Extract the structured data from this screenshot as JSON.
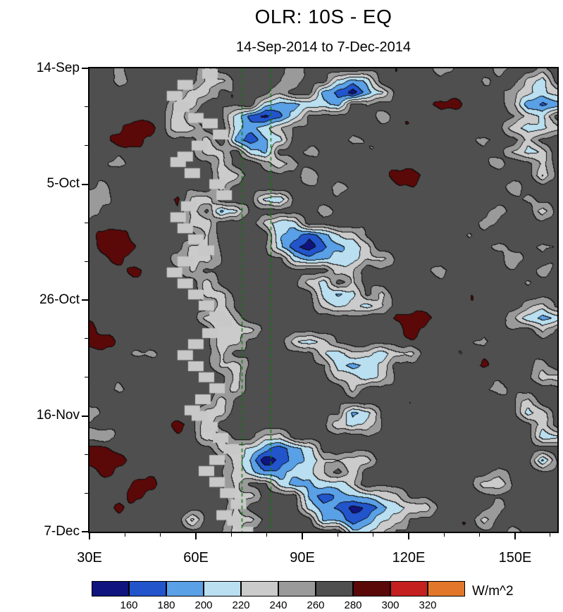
{
  "header": {
    "title": "OLR: 10S - EQ",
    "subtitle": "14-Sep-2014 to 7-Dec-2014"
  },
  "colorbar": {
    "tick_labels": [
      "160",
      "180",
      "200",
      "220",
      "240",
      "260",
      "280",
      "300",
      "320"
    ],
    "units_label": "W/m^2"
  },
  "chart_data": {
    "type": "heatmap",
    "title": "OLR: 10S - EQ",
    "subtitle": "14-Sep-2014 to 7-Dec-2014",
    "units": "W/m^2",
    "x_axis": {
      "range": [
        30,
        162
      ],
      "tick_values": [
        30,
        60,
        90,
        120,
        150
      ],
      "tick_labels": [
        "30E",
        "60E",
        "90E",
        "120E",
        "150E"
      ],
      "minor_tick_values": [
        40,
        50,
        70,
        80,
        100,
        110,
        130,
        140,
        160
      ]
    },
    "y_axis": {
      "day_range": [
        0,
        84
      ],
      "tick_days": [
        0,
        21,
        42,
        63,
        84
      ],
      "tick_labels": [
        "14-Sep",
        "5-Oct",
        "26-Oct",
        "16-Nov",
        "7-Dec"
      ],
      "minor_tick_days": [
        7,
        14,
        28,
        35,
        49,
        56,
        70,
        77
      ]
    },
    "value_levels": [
      160,
      180,
      200,
      220,
      240,
      260,
      280,
      300,
      320
    ],
    "palette": [
      "#10147e",
      "#2255cc",
      "#5aa0e6",
      "#b9dff0",
      "#cbcbcb",
      "#9a9a9a",
      "#4f4f4f",
      "#5a0808",
      "#c42020",
      "#e2762a"
    ],
    "encoding": {
      "base": 150,
      "step": 20,
      "note": "each char d maps to OLR = base + step*d (W/m^2); rows top=14-Sep to bottom=7-Dec, cols 30E to 162E"
    },
    "grid": [
      [
        "66566666466",
        "66656666666",
        "66566656656"
      ],
      [
        "66566666446",
        "66656632366",
        "66666566436"
      ],
      [
        "66666664466",
        "66566210236",
        "66666665434"
      ],
      [
        "66666644666",
        "63223326566",
        "66776665212"
      ],
      [
        "66666646663",
        "10136666656",
        "66666666436"
      ],
      [
        "66677644663",
        "23466666666",
        "66666664334"
      ],
      [
        "66776666462",
        "12366665666",
        "66666566466"
      ],
      [
        "66666666446",
        "32665666666",
        "66666664346"
      ],
      [
        "66566666646",
        "65456666666",
        "66666656646"
      ],
      [
        "66666666644",
        "66665666667",
        "76666666636"
      ],
      [
        "65666666646",
        "66666656666",
        "66666665666"
      ],
      [
        "55666674466",
        "63266666666",
        "66666666566"
      ],
      [
        "56666664623",
        "66666566666",
        "66666656646"
      ],
      [
        "66666664466",
        "64336666666",
        "66666566666"
      ],
      [
        "67766666466",
        "66321234666",
        "66665666666"
      ],
      [
        "67776664466",
        "66310123466",
        "66666656656"
      ],
      [
        "66766654466",
        "66632233446",
        "66666665666"
      ],
      [
        "66676664666",
        "66666644666",
        "66566666656"
      ],
      [
        "66666666466",
        "66664364666",
        "66666666566"
      ],
      [
        "66666666446",
        "66666323646",
        "66666666666"
      ],
      [
        "66666666646",
        "66666434346",
        "66666666546"
      ],
      [
        "66666666445",
        "66666666667",
        "77666665323"
      ],
      [
        "76666666644",
        "46666666666",
        "76666666646"
      ],
      [
        "77666666644",
        "66643466666",
        "66666566666"
      ],
      [
        "66655666646",
        "66666434434",
        "46666666666"
      ],
      [
        "66666666644",
        "66666632346",
        "66666766656"
      ],
      [
        "66666666664",
        "66666644346",
        "66666666644"
      ],
      [
        "66566666664",
        "66666664666",
        "66666656666"
      ],
      [
        "66666666646",
        "66666666666",
        "66666666466"
      ],
      [
        "56666666446",
        "66666662366",
        "66666666346"
      ],
      [
        "66666676466",
        "66666643466",
        "66666666646"
      ],
      [
        "55666666446",
        "64466666666",
        "66666666633"
      ],
      [
        "77666666644",
        "32123666666",
        "66666666666"
      ],
      [
        "77766666664",
        "20123444466",
        "66666666626"
      ],
      [
        "67666666664",
        "32233464666",
        "66666656666"
      ],
      [
        "66677666664",
        "66322334666",
        "66666446666"
      ],
      [
        "66676666664",
        "46662122344",
        "66666666666"
      ],
      [
        "66766666664",
        "66663210123",
        "44666656666"
      ],
      [
        "66666663664",
        "46666221234",
        "66666466666"
      ],
      [
        "66666666664",
        "66666663346",
        "66666665666"
      ]
    ],
    "reference_lines": {
      "color": "#0f7a0f",
      "style": "dashed",
      "lon_values": [
        73,
        81
      ]
    },
    "missing_blocks": {
      "color": "#c8c8c8",
      "points": [
        [
          1,
          64
        ],
        [
          3,
          57
        ],
        [
          5,
          54
        ],
        [
          7,
          56
        ],
        [
          9,
          60
        ],
        [
          10,
          64
        ],
        [
          12,
          67
        ],
        [
          14,
          61
        ],
        [
          16,
          57
        ],
        [
          17,
          55
        ],
        [
          19,
          59
        ],
        [
          21,
          66
        ],
        [
          23,
          68
        ],
        [
          25,
          58
        ],
        [
          27,
          55
        ],
        [
          29,
          57
        ],
        [
          31,
          60
        ],
        [
          33,
          63
        ],
        [
          35,
          57
        ],
        [
          37,
          54
        ],
        [
          39,
          57
        ],
        [
          41,
          60
        ],
        [
          43,
          63
        ],
        [
          45,
          66
        ],
        [
          46,
          68
        ],
        [
          48,
          64
        ],
        [
          50,
          60
        ],
        [
          52,
          57
        ],
        [
          54,
          60
        ],
        [
          56,
          63
        ],
        [
          58,
          66
        ],
        [
          60,
          62
        ],
        [
          62,
          59
        ],
        [
          63,
          61
        ],
        [
          65,
          64
        ],
        [
          67,
          67
        ],
        [
          69,
          70
        ],
        [
          71,
          66
        ],
        [
          73,
          63
        ],
        [
          75,
          66
        ],
        [
          77,
          69
        ],
        [
          79,
          72
        ],
        [
          81,
          68
        ],
        [
          82,
          71
        ],
        [
          84,
          74
        ]
      ]
    }
  }
}
